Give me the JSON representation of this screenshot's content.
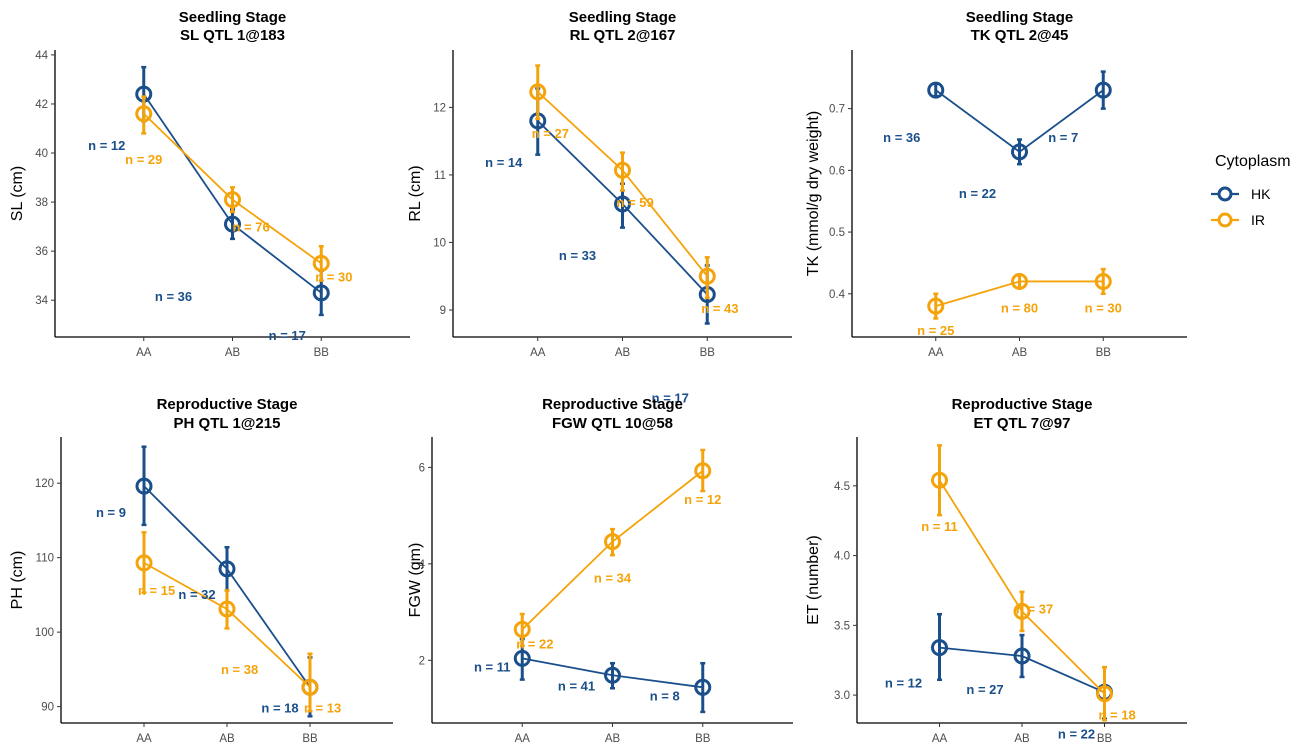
{
  "legend": {
    "title": "Cytoplasm",
    "items": [
      {
        "name": "HK",
        "color": "#1a4f8b"
      },
      {
        "name": "IR",
        "color": "#f5a30a"
      }
    ]
  },
  "chart_data": [
    {
      "type": "line",
      "title": "Seedling Stage",
      "subtitle": "SL QTL 1@183",
      "ylabel": "SL (cm)",
      "categories": [
        "AA",
        "AB",
        "BB"
      ],
      "ylim": [
        32.5,
        44.2
      ],
      "yticks": [
        34,
        36,
        38,
        40,
        42,
        44
      ],
      "series": [
        {
          "name": "HK",
          "values": [
            42.4,
            37.1,
            34.3
          ],
          "lower": [
            41.3,
            36.5,
            33.4
          ],
          "upper": [
            43.5,
            37.7,
            35.2
          ],
          "labels": [
            "n = 12",
            "n = 36",
            "n = 17"
          ]
        },
        {
          "name": "IR",
          "values": [
            41.6,
            38.1,
            35.5
          ],
          "lower": [
            40.8,
            37.6,
            34.8
          ],
          "upper": [
            42.3,
            38.6,
            36.2
          ],
          "labels": [
            "n = 29",
            "n = 76",
            "n = 30"
          ]
        }
      ]
    },
    {
      "type": "line",
      "title": "Seedling Stage",
      "subtitle": "RL QTL 2@167",
      "ylabel": "RL (cm)",
      "categories": [
        "AA",
        "AB",
        "BB"
      ],
      "ylim": [
        8.6,
        12.85
      ],
      "yticks": [
        9,
        10,
        11,
        12
      ],
      "series": [
        {
          "name": "HK",
          "values": [
            11.8,
            10.57,
            9.23
          ],
          "lower": [
            11.3,
            10.22,
            8.8
          ],
          "upper": [
            12.28,
            10.87,
            9.66
          ],
          "labels": [
            "n = 14",
            "n = 33",
            "n = 17"
          ]
        },
        {
          "name": "IR",
          "values": [
            12.23,
            11.07,
            9.5
          ],
          "lower": [
            11.83,
            10.77,
            9.18
          ],
          "upper": [
            12.62,
            11.33,
            9.78
          ],
          "labels": [
            "n = 27",
            "n = 59",
            "n = 43"
          ]
        }
      ]
    },
    {
      "type": "line",
      "title": "Seedling Stage",
      "subtitle": "TK QTL 2@45",
      "ylabel": "TK (mmol/g dry weight)",
      "categories": [
        "AA",
        "AB",
        "BB"
      ],
      "ylim": [
        0.33,
        0.795
      ],
      "yticks": [
        0.4,
        0.5,
        0.6,
        0.7
      ],
      "series": [
        {
          "name": "HK",
          "values": [
            0.73,
            0.63,
            0.73
          ],
          "lower": [
            0.72,
            0.61,
            0.7
          ],
          "upper": [
            0.74,
            0.65,
            0.76
          ],
          "labels": [
            "n = 36",
            "n = 22",
            "n = 7"
          ]
        },
        {
          "name": "IR",
          "values": [
            0.38,
            0.42,
            0.42
          ],
          "lower": [
            0.36,
            0.41,
            0.4
          ],
          "upper": [
            0.4,
            0.43,
            0.44
          ],
          "labels": [
            "n = 25",
            "n = 80",
            "n = 30"
          ]
        }
      ]
    },
    {
      "type": "line",
      "title": "Reproductive Stage",
      "subtitle": "PH QTL 1@215",
      "ylabel": "PH (cm)",
      "categories": [
        "AA",
        "AB",
        "BB"
      ],
      "ylim": [
        87.8,
        126.2
      ],
      "yticks": [
        90,
        100,
        110,
        120
      ],
      "series": [
        {
          "name": "HK",
          "values": [
            119.6,
            108.5,
            92.6
          ],
          "lower": [
            114.4,
            105.6,
            88.7
          ],
          "upper": [
            124.9,
            111.4,
            96.6
          ],
          "labels": [
            "n = 9",
            "n = 32",
            "n = 18"
          ]
        },
        {
          "name": "IR",
          "values": [
            109.3,
            103.1,
            92.6
          ],
          "lower": [
            105.3,
            100.5,
            89.4
          ],
          "upper": [
            113.4,
            105.6,
            97.1
          ],
          "labels": [
            "n = 15",
            "n = 38",
            "n = 13"
          ]
        }
      ]
    },
    {
      "type": "line",
      "title": "Reproductive Stage",
      "subtitle": "FGW QTL 10@58",
      "ylabel": "FGW (gm)",
      "categories": [
        "AA",
        "AB",
        "BB"
      ],
      "ylim": [
        0.7,
        6.63
      ],
      "yticks": [
        2,
        4,
        6
      ],
      "series": [
        {
          "name": "HK",
          "values": [
            2.04,
            1.69,
            1.44
          ],
          "lower": [
            1.6,
            1.42,
            0.93
          ],
          "upper": [
            2.44,
            1.94,
            1.94
          ],
          "labels": [
            "n = 11",
            "n = 41",
            "n = 8"
          ]
        },
        {
          "name": "IR",
          "values": [
            2.64,
            4.46,
            5.93
          ],
          "lower": [
            2.3,
            4.18,
            5.51
          ],
          "upper": [
            2.96,
            4.72,
            6.36
          ],
          "labels": [
            "n = 22",
            "n = 34",
            "n = 12"
          ]
        }
      ]
    },
    {
      "type": "line",
      "title": "Reproductive Stage",
      "subtitle": "ET QTL 7@97",
      "ylabel": "ET (number)",
      "categories": [
        "AA",
        "AB",
        "BB"
      ],
      "ylim": [
        2.8,
        4.85
      ],
      "yticks": [
        3.0,
        3.5,
        4.0,
        4.5
      ],
      "series": [
        {
          "name": "HK",
          "values": [
            3.34,
            3.28,
            3.02
          ],
          "lower": [
            3.11,
            3.13,
            2.83
          ],
          "upper": [
            3.58,
            3.43,
            3.2
          ],
          "labels": [
            "n = 12",
            "n = 27",
            "n = 22"
          ]
        },
        {
          "name": "IR",
          "values": [
            4.54,
            3.6,
            3.01
          ],
          "lower": [
            4.29,
            3.46,
            2.82
          ],
          "upper": [
            4.79,
            3.74,
            3.2
          ],
          "labels": [
            "n = 11",
            "n = 37",
            "n = 18"
          ]
        }
      ]
    }
  ]
}
